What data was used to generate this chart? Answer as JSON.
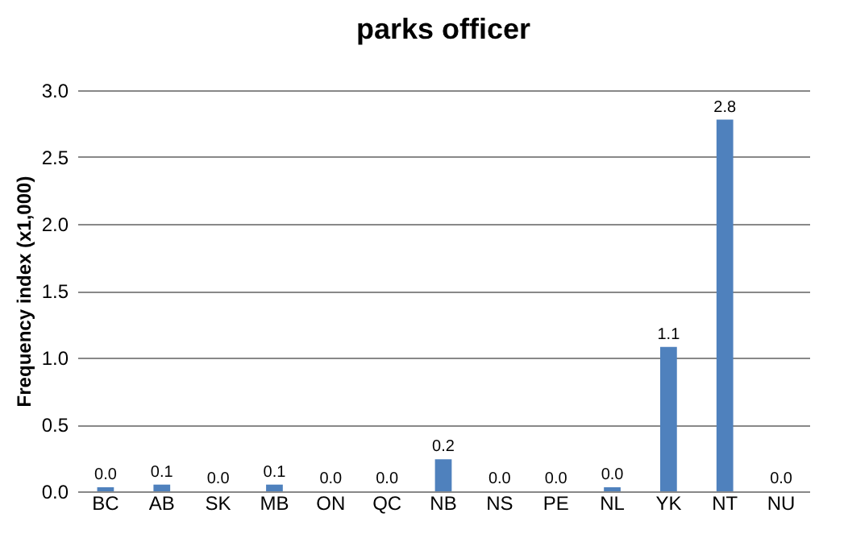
{
  "chart_data": {
    "type": "bar",
    "title": "parks officer",
    "ylabel": "Frequency index (x1,000)",
    "categories": [
      "BC",
      "AB",
      "SK",
      "MB",
      "ON",
      "QC",
      "NB",
      "NS",
      "PE",
      "NL",
      "YK",
      "NT",
      "NU"
    ],
    "values": [
      0.03,
      0.05,
      0,
      0.05,
      0,
      0,
      0.24,
      0,
      0,
      0.03,
      1.08,
      2.78,
      0
    ],
    "value_labels": [
      "0.0",
      "0.1",
      "0.0",
      "0.1",
      "0.0",
      "0.0",
      "0.2",
      "0.0",
      "0.0",
      "0.0",
      "1.1",
      "2.8",
      "0.0"
    ],
    "color": "#4f81bd",
    "ylim": [
      0,
      3
    ],
    "yticks": [
      {
        "value": 0,
        "label": "0.0"
      },
      {
        "value": 0.5,
        "label": "0.5"
      },
      {
        "value": 1,
        "label": "1.0"
      },
      {
        "value": 1.5,
        "label": "1.5"
      },
      {
        "value": 2,
        "label": "2.0"
      },
      {
        "value": 2.5,
        "label": "2.5"
      },
      {
        "value": 3,
        "label": "3.0"
      }
    ],
    "grid": "y"
  }
}
